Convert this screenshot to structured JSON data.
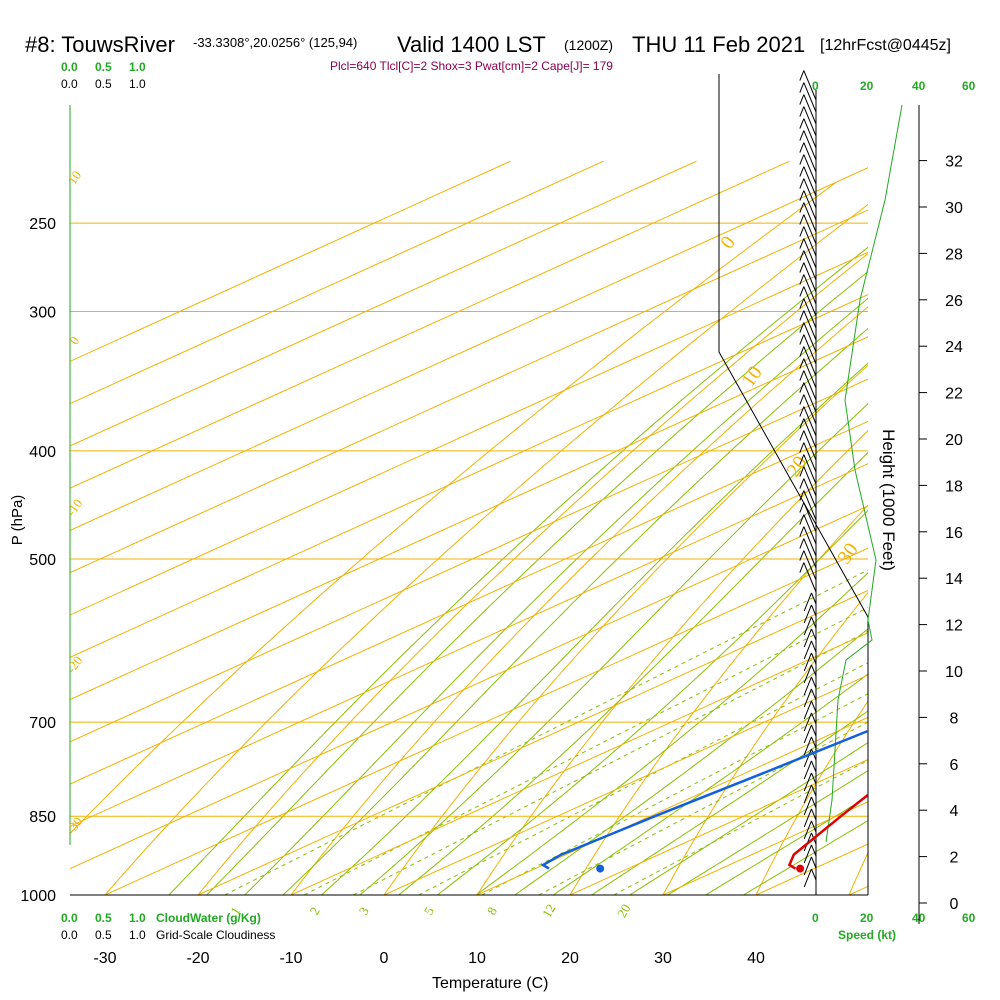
{
  "header": {
    "station": "#8: TouwsRiver",
    "coords": "-33.3308°,20.0256° (125,94)",
    "valid": "Valid 1400 LST",
    "zulu": "(1200Z)",
    "date": "THU 11 Feb 2021",
    "forecast": "[12hrFcst@0445z]",
    "indices": "Plcl=640 Tlcl[C]=2 Shox=3 Pwat[cm]=2 Cape[J]= 179"
  },
  "cloud_scale": {
    "top_green": [
      "0.0",
      "0.5",
      "1.0"
    ],
    "top_black": [
      "0.0",
      "0.5",
      "1.0"
    ],
    "bottom_green": [
      "0.0",
      "0.5",
      "1.0"
    ],
    "bottom_black": [
      "0.0",
      "0.5",
      "1.0"
    ],
    "cloudwater_label": "CloudWater (g/Kg)",
    "cloudiness_label": "Grid-Scale Cloudiness"
  },
  "speed_scale": {
    "top_labels": [
      "0",
      "20",
      "40",
      "60"
    ],
    "bottom_labels": [
      "0",
      "20",
      "40",
      "60"
    ],
    "label": "Speed (kt)"
  },
  "colors": {
    "isotherm": "#f2b200",
    "adiabat": "#88c000",
    "temperature": "#e00000",
    "dewpoint": "#1060e0",
    "parcel": "#800040",
    "cloud": "#22aa22",
    "mixing": "#88c000"
  },
  "chart_data": {
    "type": "skew-t",
    "xlabel": "Temperature (C)",
    "ylabel": "P (hPa)",
    "y2label": "Height (1000 Feet)",
    "x_ticks": [
      -30,
      -20,
      -10,
      0,
      10,
      20,
      30,
      40
    ],
    "xlim": [
      -30,
      40
    ],
    "pressure_ticks": [
      250,
      300,
      400,
      500,
      700,
      850,
      1000
    ],
    "height_ticks": [
      0,
      2,
      4,
      6,
      8,
      10,
      12,
      14,
      16,
      18,
      20,
      22,
      24,
      26,
      28,
      30,
      32
    ],
    "isotherm_labels": [
      {
        "label": "10",
        "side": "left"
      },
      {
        "label": "0",
        "side": "left"
      },
      {
        "label": "-10",
        "side": "left"
      },
      {
        "label": "-20",
        "side": "left"
      },
      {
        "label": "-30",
        "side": "left"
      },
      {
        "label": "0",
        "side": "right"
      },
      {
        "label": "10",
        "side": "right"
      },
      {
        "label": "20",
        "side": "right"
      },
      {
        "label": "30",
        "side": "right"
      }
    ],
    "mixing_ratio_labels": [
      "1",
      "2",
      "3",
      "5",
      "8",
      "12",
      "20"
    ],
    "temperature": [
      {
        "p": 947,
        "t": 38.0
      },
      {
        "p": 940,
        "t": 36.5
      },
      {
        "p": 920,
        "t": 34.5
      },
      {
        "p": 850,
        "t": 30.5
      },
      {
        "p": 775,
        "t": 26.0
      },
      {
        "p": 700,
        "t": 22.0
      },
      {
        "p": 675,
        "t": 21.0
      },
      {
        "p": 650,
        "t": 22.5
      },
      {
        "p": 625,
        "t": 22.5
      },
      {
        "p": 600,
        "t": 20.0
      },
      {
        "p": 575,
        "t": 18.5
      },
      {
        "p": 550,
        "t": 17.8
      },
      {
        "p": 500,
        "t": 15.5
      },
      {
        "p": 450,
        "t": 12.5
      },
      {
        "p": 400,
        "t": 9.5
      },
      {
        "p": 350,
        "t": 6.0
      },
      {
        "p": 300,
        "t": 3.5
      },
      {
        "p": 270,
        "t": 2.8
      }
    ],
    "dewpoint": [
      {
        "p": 947,
        "t": 11.5
      },
      {
        "p": 940,
        "t": 10.0
      },
      {
        "p": 920,
        "t": 9.5
      },
      {
        "p": 850,
        "t": 10.5
      },
      {
        "p": 775,
        "t": 12.0
      },
      {
        "p": 700,
        "t": 13.5
      },
      {
        "p": 675,
        "t": 12.5
      },
      {
        "p": 650,
        "t": 10.0
      },
      {
        "p": 625,
        "t": 10.5
      },
      {
        "p": 600,
        "t": 11.5
      },
      {
        "p": 550,
        "t": 11.0
      },
      {
        "p": 525,
        "t": 8.0
      },
      {
        "p": 505,
        "t": 6.0
      },
      {
        "p": 475,
        "t": -8.0
      },
      {
        "p": 430,
        "t": -17.5
      },
      {
        "p": 400,
        "t": -16.0
      },
      {
        "p": 350,
        "t": -16.5
      },
      {
        "p": 300,
        "t": -14.5
      },
      {
        "p": 270,
        "t": -12.5
      }
    ],
    "parcel": [
      {
        "p": 570,
        "t": 18.8
      },
      {
        "p": 500,
        "t": 16.5
      },
      {
        "p": 450,
        "t": 14.3
      },
      {
        "p": 400,
        "t": 11.5
      },
      {
        "p": 350,
        "t": 8.5
      },
      {
        "p": 300,
        "t": 5.0
      },
      {
        "p": 285,
        "t": 4.2
      }
    ],
    "surface_temperature": 38.5,
    "surface_dewpoint": 17.0
  }
}
